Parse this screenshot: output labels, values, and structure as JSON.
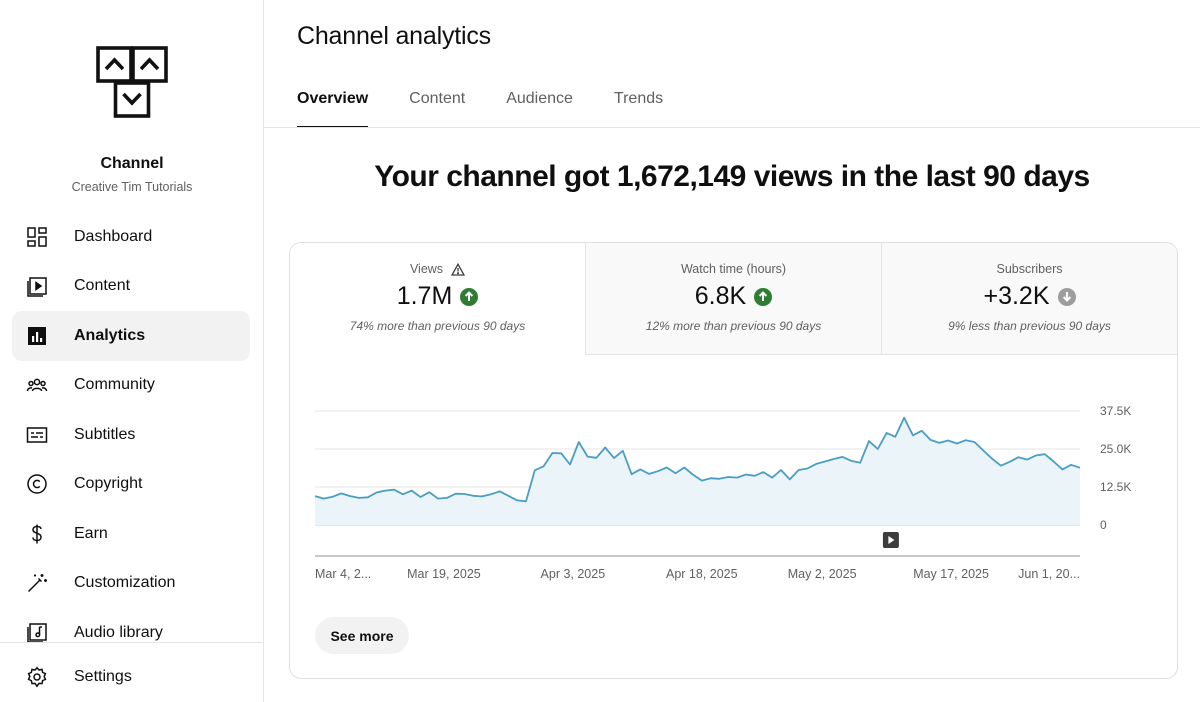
{
  "sidebar": {
    "channel_title": "Channel",
    "channel_name": "Creative Tim Tutorials",
    "items": [
      {
        "label": "Dashboard",
        "icon": "dashboard-icon"
      },
      {
        "label": "Content",
        "icon": "content-icon"
      },
      {
        "label": "Analytics",
        "icon": "analytics-icon",
        "active": true
      },
      {
        "label": "Community",
        "icon": "community-icon"
      },
      {
        "label": "Subtitles",
        "icon": "subtitles-icon"
      },
      {
        "label": "Copyright",
        "icon": "copyright-icon"
      },
      {
        "label": "Earn",
        "icon": "dollar-icon"
      },
      {
        "label": "Customization",
        "icon": "magic-wand-icon"
      },
      {
        "label": "Audio library",
        "icon": "audio-library-icon"
      }
    ],
    "settings_label": "Settings"
  },
  "header": {
    "title": "Channel analytics",
    "tabs": [
      "Overview",
      "Content",
      "Audience",
      "Trends"
    ],
    "active_tab": "Overview"
  },
  "headline": "Your channel got 1,672,149 views in the last 90 days",
  "metrics": [
    {
      "label": "Views",
      "value": "1.7M",
      "trend": "up",
      "note": "74% more than previous 90 days",
      "warning": true
    },
    {
      "label": "Watch time (hours)",
      "value": "6.8K",
      "trend": "up",
      "note": "12% more than previous 90 days"
    },
    {
      "label": "Subscribers",
      "value": "+3.2K",
      "trend": "down",
      "note": "9% less than previous 90 days"
    }
  ],
  "colors": {
    "accent_line": "#4a9ec4",
    "area_fill": "#eaf4f9",
    "trend_up": "#2e7d32",
    "trend_down": "#9e9e9e"
  },
  "chart_data": {
    "type": "area",
    "series": [
      {
        "values": [
          9500,
          8700,
          9300,
          10400,
          9500,
          8900,
          9100,
          10700,
          11300,
          11600,
          10100,
          11300,
          9200,
          10800,
          8700,
          8900,
          10300,
          10200,
          9600,
          9400,
          10100,
          11100,
          9600,
          8100,
          7800,
          18000,
          19300,
          23700,
          23600,
          19900,
          27300,
          22500,
          22100,
          25500,
          22000,
          24400,
          16700,
          18300,
          16800,
          17700,
          18900,
          17000,
          18900,
          16500,
          14600,
          15400,
          15200,
          15800,
          15600,
          16600,
          16200,
          17400,
          15600,
          18100,
          15000,
          18100,
          18600,
          20100,
          20900,
          21700,
          22400,
          21100,
          20500,
          27600,
          25000,
          30300,
          29000,
          35300,
          29500,
          31000,
          28000,
          27000,
          27800,
          26800,
          27900,
          27300,
          24500,
          21800,
          19500,
          20800,
          22300,
          21500,
          22900,
          23300,
          20900,
          18300,
          19800,
          18800
        ]
      }
    ],
    "x_start": "2025-03-04",
    "x_end": "2025-06-01",
    "x_ticks": [
      "Mar 4, 2...",
      "Mar 19, 2025",
      "Apr 3, 2025",
      "Apr 18, 2025",
      "May 2, 2025",
      "May 17, 2025",
      "Jun 1, 20..."
    ],
    "x_tick_dates": [
      "2025-03-04",
      "2025-03-19",
      "2025-04-03",
      "2025-04-18",
      "2025-05-02",
      "2025-05-17",
      "2025-06-01"
    ],
    "y_ticks": [
      "0",
      "12.5K",
      "25.0K",
      "37.5K"
    ],
    "y_tick_values": [
      0,
      12500,
      25000,
      37500
    ],
    "ylim": [
      0,
      37500
    ],
    "grid": true,
    "marker_date": "2025-05-10"
  },
  "see_more_label": "See more"
}
